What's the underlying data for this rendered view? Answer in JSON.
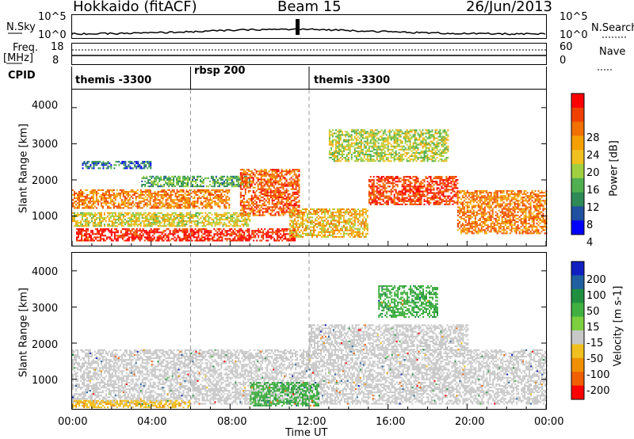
{
  "header": {
    "radar": "Hokkaido (fitACF)",
    "beam": "Beam 15",
    "date": "26/Jun/2013"
  },
  "noise_panel": {
    "left_label": "N.Sky",
    "right_label": "N.Search",
    "left_ticks": [
      "10^5",
      "10^0"
    ],
    "right_ticks": [
      "10^5",
      "10^0"
    ]
  },
  "freq_panel": {
    "left_label_line1": "Freq.",
    "left_label_line2": "[MHz]",
    "right_label": "Nave",
    "left_ticks": [
      "18",
      "8"
    ],
    "right_ticks": [
      "60",
      "0"
    ]
  },
  "cpid_panel": {
    "label": "CPID",
    "segments": [
      {
        "text": "themis -3300",
        "start_hour": 0
      },
      {
        "text": "rbsp 200",
        "start_hour": 6
      },
      {
        "text": "themis -3300",
        "start_hour": 12
      }
    ]
  },
  "x_axis": {
    "label": "Time UT",
    "ticks": [
      "00:00",
      "04:00",
      "08:00",
      "12:00",
      "16:00",
      "20:00",
      "00:00"
    ]
  },
  "power_panel": {
    "ylabel": "Slant Range [km]",
    "yticks": [
      "1000",
      "2000",
      "3000",
      "4000"
    ],
    "colorbar_label": "Power [dB]",
    "colorbar_ticks": [
      "4",
      "8",
      "12",
      "16",
      "20",
      "24",
      "28"
    ],
    "colors": [
      "#0000ff",
      "#2050a0",
      "#2e8b57",
      "#50b050",
      "#a0d040",
      "#f0c020",
      "#f5a000",
      "#f07000",
      "#f04000",
      "#ff0000"
    ]
  },
  "velocity_panel": {
    "ylabel": "Slant Range [km]",
    "yticks": [
      "1000",
      "2000",
      "3000",
      "4000"
    ],
    "colorbar_label": "Velocity [m s-1]",
    "colorbar_ticks": [
      "200",
      "100",
      "50",
      "15",
      "-15",
      "-50",
      "-100",
      "-200"
    ],
    "colors": [
      "#1020c0",
      "#2060a0",
      "#209040",
      "#40b040",
      "#7cd040",
      "#c8c8c8",
      "#f0c020",
      "#f09000",
      "#f06000",
      "#ff0000"
    ]
  },
  "chart_data": {
    "type": "heatmap",
    "title": "Beam 15",
    "xlabel": "Time UT",
    "ylabel": "Slant Range [km]",
    "xlim_hours": [
      0,
      24
    ],
    "ylim_km": [
      180,
      4500
    ],
    "power_clim_db": [
      0,
      30
    ],
    "velocity_clim_ms": [
      -250,
      250
    ],
    "power_regions": [
      {
        "t0": 0.2,
        "t1": 11.3,
        "r0": 300,
        "r1": 650,
        "db": 28
      },
      {
        "t0": 0.0,
        "t1": 9.0,
        "r0": 700,
        "r1": 1100,
        "db": 16
      },
      {
        "t0": 0.0,
        "t1": 8.0,
        "r0": 1200,
        "r1": 1700,
        "db": 22
      },
      {
        "t0": 3.5,
        "t1": 9.0,
        "r0": 1800,
        "r1": 2100,
        "db": 10
      },
      {
        "t0": 8.5,
        "t1": 11.5,
        "r0": 1000,
        "r1": 2300,
        "db": 24
      },
      {
        "t0": 11.0,
        "t1": 15.0,
        "r0": 400,
        "r1": 1200,
        "db": 18
      },
      {
        "t0": 15.0,
        "t1": 19.5,
        "r0": 1300,
        "r1": 2100,
        "db": 26
      },
      {
        "t0": 19.5,
        "t1": 24.0,
        "r0": 500,
        "r1": 1700,
        "db": 22
      },
      {
        "t0": 13.0,
        "t1": 19.0,
        "r0": 2500,
        "r1": 3400,
        "db": 14
      },
      {
        "t0": 0.5,
        "t1": 4.0,
        "r0": 2300,
        "r1": 2500,
        "db": 6
      }
    ],
    "velocity_regions": [
      {
        "t0": 0.0,
        "t1": 24.0,
        "r0": 300,
        "r1": 1800,
        "v": 0
      },
      {
        "t0": 9.0,
        "t1": 12.5,
        "r0": 250,
        "r1": 900,
        "v": 40
      },
      {
        "t0": 15.5,
        "t1": 18.5,
        "r0": 2700,
        "r1": 3600,
        "v": 40
      },
      {
        "t0": 12.0,
        "t1": 20.0,
        "r0": 1800,
        "r1": 2500,
        "v": 0
      },
      {
        "t0": 0.0,
        "t1": 6.0,
        "r0": 200,
        "r1": 400,
        "v": -40
      }
    ]
  }
}
